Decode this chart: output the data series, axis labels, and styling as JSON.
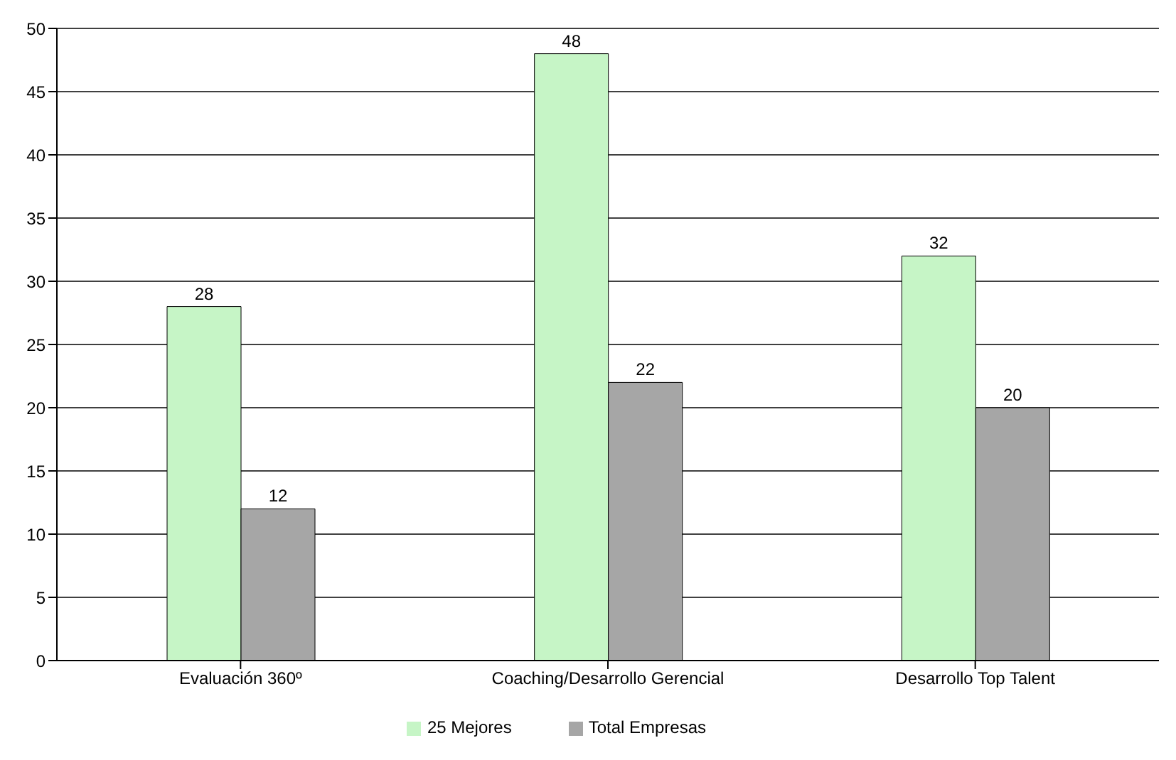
{
  "chart_data": {
    "type": "bar",
    "categories": [
      "Evaluación 360º",
      "Coaching/Desarrollo Gerencial",
      "Desarrollo Top Talent"
    ],
    "series": [
      {
        "name": "25 Mejores",
        "color": "#c6f5c6",
        "values": [
          28,
          48,
          32
        ]
      },
      {
        "name": "Total Empresas",
        "color": "#a6a6a6",
        "values": [
          12,
          22,
          20
        ]
      }
    ],
    "ylim": [
      0,
      50
    ],
    "yticks": [
      0,
      5,
      10,
      15,
      20,
      25,
      30,
      35,
      40,
      45,
      50
    ],
    "grid": "y",
    "legend": "bottom",
    "data_labels": true
  }
}
